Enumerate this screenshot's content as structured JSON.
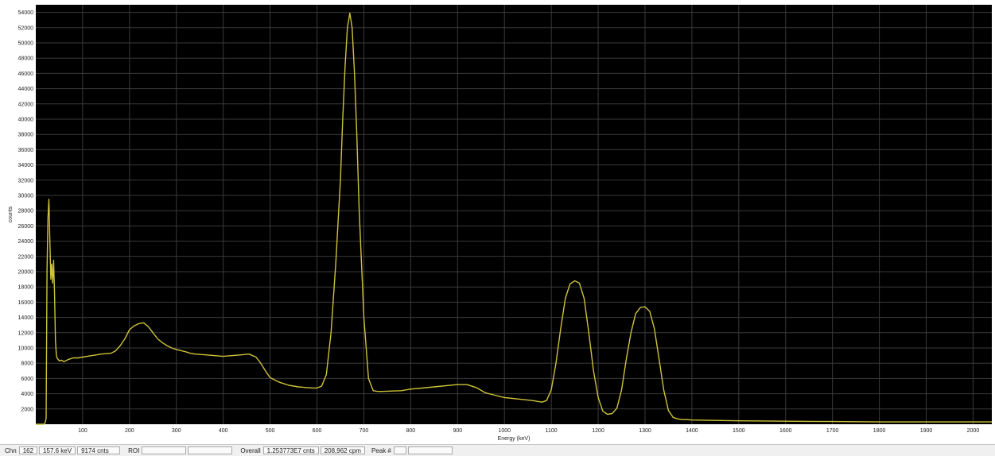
{
  "chart_data": {
    "type": "line",
    "title": "",
    "xlabel": "Energy (keV)",
    "ylabel": "counts",
    "xlim": [
      0,
      2040
    ],
    "ylim": [
      0,
      55000
    ],
    "x_ticks": [
      100,
      200,
      300,
      400,
      500,
      600,
      700,
      800,
      900,
      1000,
      1100,
      1200,
      1300,
      1400,
      1500,
      1600,
      1700,
      1800,
      1900,
      2000
    ],
    "y_ticks": [
      2000,
      4000,
      6000,
      8000,
      10000,
      12000,
      14000,
      16000,
      18000,
      20000,
      22000,
      24000,
      26000,
      28000,
      30000,
      32000,
      34000,
      36000,
      38000,
      40000,
      42000,
      44000,
      46000,
      48000,
      50000,
      52000,
      54000
    ],
    "grid": true,
    "background_color": "#000000",
    "grid_color": "#3a3a3a",
    "line_color": "#cfc23a",
    "series": [
      {
        "x": [
          0,
          10,
          15,
          18,
          20,
          22,
          24,
          26,
          28,
          30,
          32,
          34,
          36,
          38,
          40,
          42,
          44,
          46,
          48,
          50,
          55,
          60,
          70,
          80,
          90,
          100,
          120,
          140,
          160,
          170,
          180,
          190,
          200,
          210,
          220,
          230,
          240,
          250,
          260,
          270,
          280,
          290,
          300,
          320,
          330,
          340,
          360,
          380,
          400,
          420,
          440,
          455,
          470,
          480,
          490,
          500,
          520,
          540,
          560,
          580,
          590,
          600,
          610,
          620,
          630,
          640,
          650,
          655,
          660,
          665,
          670,
          675,
          680,
          685,
          690,
          700,
          710,
          720,
          730,
          740,
          760,
          780,
          800,
          850,
          900,
          920,
          940,
          960,
          980,
          1000,
          1030,
          1060,
          1080,
          1090,
          1100,
          1110,
          1120,
          1130,
          1140,
          1150,
          1160,
          1170,
          1180,
          1190,
          1200,
          1210,
          1220,
          1230,
          1240,
          1250,
          1260,
          1270,
          1280,
          1290,
          1300,
          1310,
          1320,
          1330,
          1340,
          1350,
          1360,
          1370,
          1380,
          1390,
          1400,
          1450,
          1500,
          1600,
          1700,
          1800,
          1900,
          2000,
          2040
        ],
        "y": [
          0,
          0,
          0,
          0,
          200,
          800,
          20000,
          27000,
          29500,
          24000,
          19000,
          21000,
          18500,
          21500,
          17000,
          11000,
          9000,
          8600,
          8500,
          8300,
          8400,
          8200,
          8500,
          8700,
          8700,
          8800,
          9000,
          9200,
          9300,
          9600,
          10300,
          11200,
          12400,
          12900,
          13200,
          13300,
          12800,
          12000,
          11200,
          10700,
          10300,
          10000,
          9800,
          9500,
          9300,
          9200,
          9100,
          9000,
          8900,
          9000,
          9100,
          9200,
          8800,
          8000,
          7000,
          6100,
          5500,
          5100,
          4900,
          4800,
          4750,
          4750,
          5000,
          6500,
          12000,
          21000,
          32000,
          40000,
          47000,
          52000,
          53900,
          52000,
          46000,
          38000,
          28000,
          14000,
          6000,
          4400,
          4300,
          4300,
          4350,
          4400,
          4600,
          4900,
          5200,
          5200,
          4800,
          4100,
          3800,
          3500,
          3300,
          3100,
          2900,
          3100,
          4500,
          8000,
          12500,
          16500,
          18400,
          18800,
          18500,
          16500,
          12000,
          7000,
          3500,
          1700,
          1300,
          1400,
          2100,
          4500,
          8500,
          12000,
          14500,
          15300,
          15400,
          14800,
          12500,
          8500,
          4500,
          1800,
          900,
          700,
          600,
          600,
          550,
          500,
          450,
          400,
          350,
          300,
          300,
          300,
          300
        ]
      }
    ]
  },
  "status": {
    "chn_label": "Chn",
    "chn_value": "162",
    "energy": "157.6 keV",
    "counts": "9174 cnts",
    "roi_label": "ROI",
    "overall_label": "Overall",
    "overall_counts": "1.253773E7 cnts",
    "overall_cpm": "208,962 cpm",
    "peak_label": "Peak #"
  }
}
